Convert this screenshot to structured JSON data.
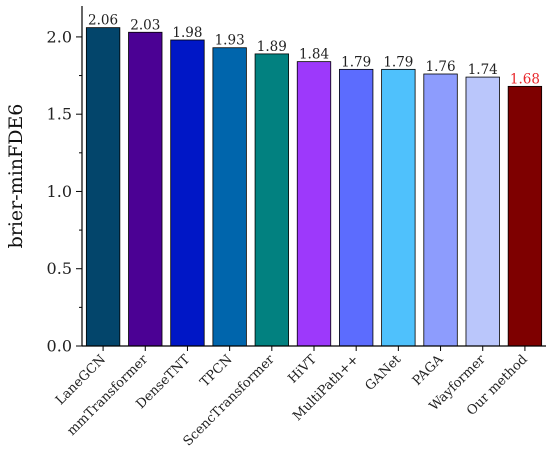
{
  "chart_data": {
    "type": "bar",
    "ylabel": "brier-minFDE6",
    "xlabel": "",
    "title": "",
    "ylim": [
      0.0,
      2.2
    ],
    "yticks": [
      0.0,
      0.5,
      1.0,
      1.5,
      2.0
    ],
    "ytick_labels": [
      "0.0",
      "0.5",
      "1.0",
      "1.5",
      "2.0"
    ],
    "grid": false,
    "categories": [
      "LaneGCN",
      "mmTransformer",
      "DenseTNT",
      "TPCN",
      "ScencTransformer",
      "HiVT",
      "MultiPath++",
      "GANet",
      "PAGA",
      "Wayformer",
      "Our method"
    ],
    "values": [
      2.06,
      2.03,
      1.98,
      1.93,
      1.89,
      1.84,
      1.79,
      1.79,
      1.76,
      1.74,
      1.68
    ],
    "value_labels": [
      "2.06",
      "2.03",
      "1.98",
      "1.93",
      "1.89",
      "1.84",
      "1.79",
      "1.79",
      "1.76",
      "1.74",
      "1.68"
    ],
    "colors": [
      "#03456b",
      "#4b0194",
      "#0017c6",
      "#0065ac",
      "#028180",
      "#9d39fb",
      "#5c6cfe",
      "#4fc1fc",
      "#8d9cfd",
      "#bac6fb",
      "#7e0000"
    ],
    "value_label_colors": [
      "#222222",
      "#222222",
      "#222222",
      "#222222",
      "#222222",
      "#222222",
      "#222222",
      "#222222",
      "#222222",
      "#222222",
      "#e8262a"
    ]
  }
}
